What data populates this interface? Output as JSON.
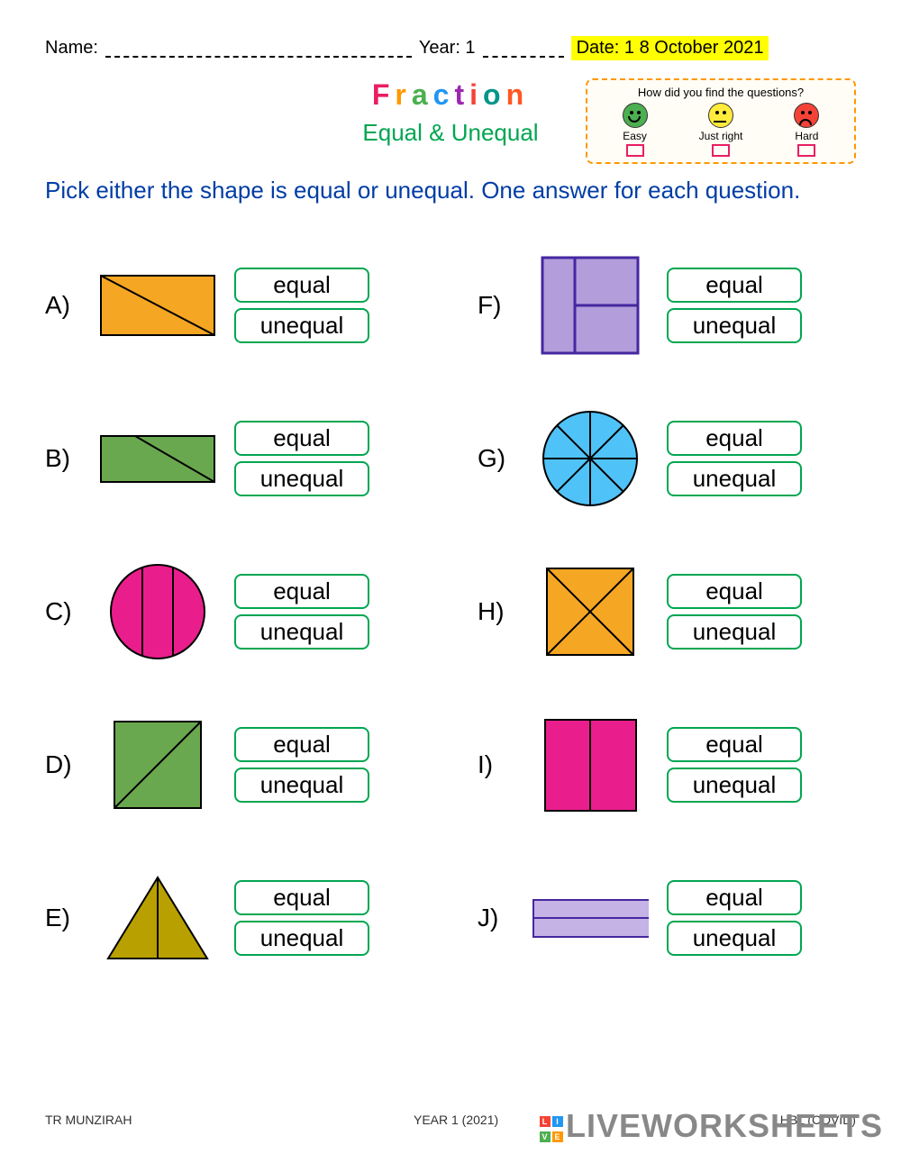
{
  "header": {
    "name_label": "Name:",
    "year_label": "Year: 1",
    "date_label": "Date: 1 8 October 2021"
  },
  "title": {
    "main": "Fraction",
    "sub": "Equal & Unequal"
  },
  "rating": {
    "question": "How did you find the questions?",
    "easy": "Easy",
    "just_right": "Just right",
    "hard": "Hard",
    "colors": {
      "easy": "#4caf50",
      "just_right": "#ffeb3b",
      "hard": "#f44336"
    }
  },
  "instructions": "Pick either the shape is equal or unequal. One answer for each question.",
  "answer_labels": {
    "equal": "equal",
    "unequal": "unequal"
  },
  "questions": [
    {
      "id": "A",
      "shape": "rect-diag",
      "fill": "#f5a623",
      "stroke": "#000"
    },
    {
      "id": "B",
      "shape": "rect-offdiag",
      "fill": "#6aa84f",
      "stroke": "#000"
    },
    {
      "id": "C",
      "shape": "circle-2v",
      "fill": "#e91e8c",
      "stroke": "#000"
    },
    {
      "id": "D",
      "shape": "square-diag",
      "fill": "#6aa84f",
      "stroke": "#000"
    },
    {
      "id": "E",
      "shape": "triangle-v",
      "fill": "#b8a000",
      "stroke": "#000"
    },
    {
      "id": "F",
      "shape": "square-t",
      "fill": "#b39ddb",
      "stroke": "#4527a0"
    },
    {
      "id": "G",
      "shape": "circle-8",
      "fill": "#4fc3f7",
      "stroke": "#000"
    },
    {
      "id": "H",
      "shape": "square-x",
      "fill": "#f5a623",
      "stroke": "#000"
    },
    {
      "id": "I",
      "shape": "square-v",
      "fill": "#e91e8c",
      "stroke": "#000"
    },
    {
      "id": "J",
      "shape": "rect-h",
      "fill": "#c5b3e6",
      "stroke": "#4527a0"
    }
  ],
  "footer": {
    "left": "TR MUNZIRAH",
    "center": "YEAR 1 (2021)",
    "right": "HBL (COVID)"
  },
  "watermark": "LIVEWORKSHEETS"
}
